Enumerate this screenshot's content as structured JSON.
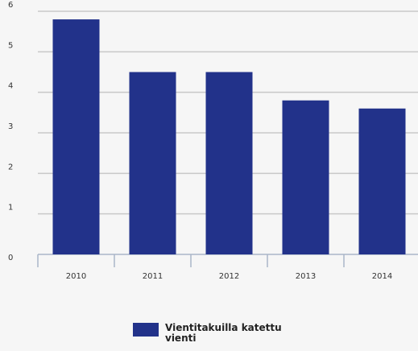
{
  "chart_data": {
    "type": "bar",
    "categories": [
      "2010",
      "2011",
      "2012",
      "2013",
      "2014"
    ],
    "series": [
      {
        "name": "Vientitakuilla katettu vienti",
        "color": "#22328a",
        "values": [
          5.8,
          4.5,
          4.5,
          3.8,
          3.6
        ]
      }
    ],
    "ylim": [
      0,
      6
    ],
    "yticks": [
      0,
      1,
      2,
      3,
      4,
      5,
      6
    ],
    "grid": true,
    "legend": "bottom"
  }
}
